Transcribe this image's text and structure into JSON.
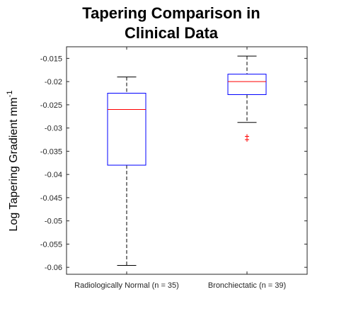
{
  "chart_data": {
    "type": "box",
    "title_lines": [
      "Tapering Comparison in",
      "Clinical Data"
    ],
    "ylabel": "Log Tapering Gradient mm",
    "ylabel_sup": "-1",
    "xlabel": "",
    "ylim": [
      -0.0615,
      -0.0125
    ],
    "yticks": [
      -0.015,
      -0.02,
      -0.025,
      -0.03,
      -0.035,
      -0.04,
      -0.045,
      -0.05,
      -0.055,
      -0.06
    ],
    "ytick_labels": [
      "-0.015",
      "-0.02",
      "-0.025",
      "-0.03",
      "-0.035",
      "-0.04",
      "-0.045",
      "-0.05",
      "-0.055",
      "-0.06"
    ],
    "grid": false,
    "categories": [
      "Radiologically Normal (n = 35)",
      "Bronchiectatic (n = 39)"
    ],
    "boxes": [
      {
        "whisker_high": -0.019,
        "q3": -0.0225,
        "median": -0.026,
        "q1": -0.038,
        "whisker_low": -0.0596,
        "outliers": []
      },
      {
        "whisker_high": -0.0145,
        "q3": -0.0184,
        "median": -0.02,
        "q1": -0.0228,
        "whisker_low": -0.0288,
        "outliers": [
          -0.0318,
          -0.0325
        ]
      }
    ],
    "colors": {
      "box": "#0000ff",
      "median": "#ff0000",
      "whisker": "#000000",
      "outlier": "#ff0000"
    }
  }
}
